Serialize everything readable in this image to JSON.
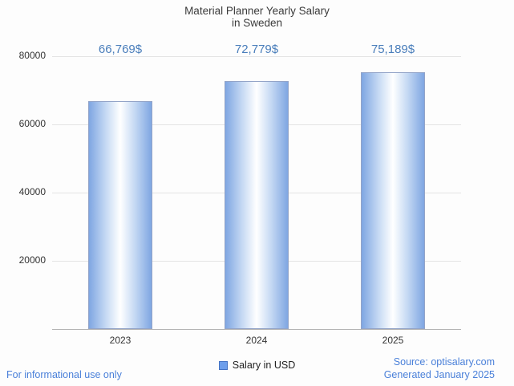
{
  "title": {
    "line1": "Material Planner Yearly Salary",
    "line2": "in Sweden"
  },
  "chart_data": {
    "type": "bar",
    "title": "Material Planner Yearly Salary in Sweden",
    "categories": [
      "2023",
      "2024",
      "2025"
    ],
    "values": [
      66769,
      72779,
      75189
    ],
    "value_labels": [
      "66,769$",
      "72,779$",
      "75,189$"
    ],
    "series_name": "Salary in USD",
    "xlabel": "",
    "ylabel": "",
    "ylim": [
      0,
      80000
    ],
    "yticks": [
      20000,
      40000,
      60000,
      80000
    ],
    "grid": "horizontal",
    "legend_position": "bottom-center"
  },
  "legend": {
    "label": "Salary in USD"
  },
  "footer": {
    "disclaimer": "For informational use only",
    "source": "Source: optisalary.com",
    "generated": "Generated January 2025"
  },
  "colors": {
    "accent": "#4a7ebb",
    "footer_link": "#4a80d9",
    "bar_edge": "#7fa6e2",
    "bar_mid": "#c8dbf4",
    "bar_center": "#ffffff",
    "bar_border": "#93a4c8",
    "legend_swatch": "#6d9eeb",
    "legend_swatch_border": "#4472c4",
    "gridline": "#e4e4e4",
    "axis": "#b3b3b3"
  }
}
